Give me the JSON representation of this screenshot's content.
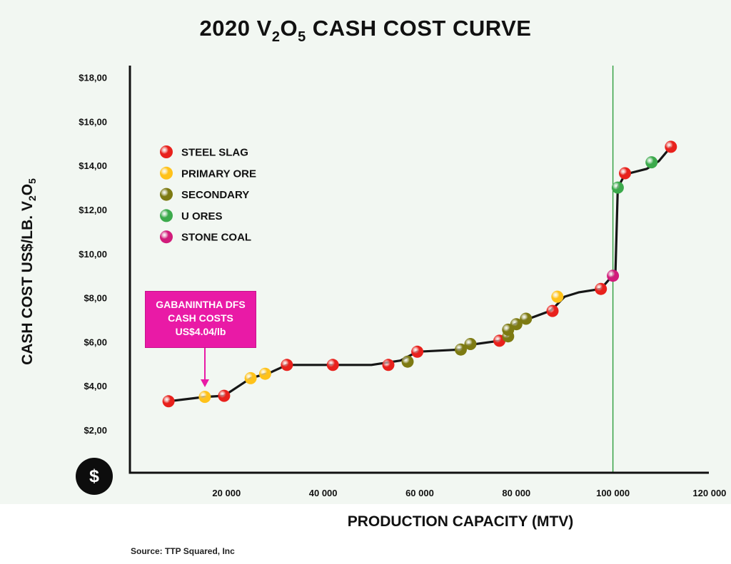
{
  "title": {
    "main": "2020 V",
    "sub1": "2",
    "mid": "O",
    "sub2": "5",
    "end": " CASH COST CURVE"
  },
  "ylabel": {
    "main": "CASH COST US$/LB. V",
    "sub1": "2",
    "mid": "O",
    "sub2": "5"
  },
  "xlabel": "PRODUCTION CAPACITY (MTV)",
  "source": "Source: TTP Squared, Inc",
  "dollar_symbol": "$",
  "callout": {
    "line1": "GABANINTHA DFS",
    "line2": "CASH COSTS",
    "line3": "US$4.04/lb",
    "color": "#e91aa6"
  },
  "chart_data": {
    "type": "line",
    "xlim": [
      0,
      120000
    ],
    "ylim": [
      0,
      18
    ],
    "reference_line_x": 100000,
    "reference_line_color": "#2e9e3e",
    "y_ticks": [
      {
        "v": 2,
        "label": "$2,00"
      },
      {
        "v": 4,
        "label": "$4,00"
      },
      {
        "v": 6,
        "label": "$6,00"
      },
      {
        "v": 8,
        "label": "$8,00"
      },
      {
        "v": 10,
        "label": "$10,00"
      },
      {
        "v": 12,
        "label": "$12,00"
      },
      {
        "v": 14,
        "label": "$14,00"
      },
      {
        "v": 16,
        "label": "$16,00"
      },
      {
        "v": 18,
        "label": "$18,00"
      }
    ],
    "x_ticks": [
      {
        "v": 20000,
        "label": "20 000"
      },
      {
        "v": 40000,
        "label": "40 000"
      },
      {
        "v": 60000,
        "label": "60 000"
      },
      {
        "v": 80000,
        "label": "80 000"
      },
      {
        "v": 100000,
        "label": "100 000"
      },
      {
        "v": 120000,
        "label": "120 000"
      }
    ],
    "categories": [
      {
        "key": "steel",
        "name": "STEEL SLAG",
        "color": "#e8211c"
      },
      {
        "key": "primary",
        "name": "PRIMARY ORE",
        "color": "#ffc21a"
      },
      {
        "key": "secondary",
        "name": "SECONDARY",
        "color": "#7d7a12"
      },
      {
        "key": "u",
        "name": "U ORES",
        "color": "#3caa4c"
      },
      {
        "key": "stone",
        "name": "STONE COAL",
        "color": "#d11c7b"
      }
    ],
    "line_points": [
      [
        8000,
        3.3
      ],
      [
        15500,
        3.5
      ],
      [
        19500,
        3.55
      ],
      [
        25000,
        4.35
      ],
      [
        29000,
        4.6
      ],
      [
        32500,
        4.95
      ],
      [
        40000,
        4.95
      ],
      [
        50000,
        4.95
      ],
      [
        56000,
        5.15
      ],
      [
        59500,
        5.55
      ],
      [
        68500,
        5.65
      ],
      [
        70000,
        5.85
      ],
      [
        76500,
        6.05
      ],
      [
        78000,
        6.2
      ],
      [
        78300,
        6.5
      ],
      [
        79700,
        6.8
      ],
      [
        82000,
        7.0
      ],
      [
        87000,
        7.4
      ],
      [
        88000,
        7.6
      ],
      [
        90000,
        8.05
      ],
      [
        93000,
        8.25
      ],
      [
        97500,
        8.4
      ],
      [
        99500,
        8.9
      ],
      [
        100500,
        9.0
      ],
      [
        101000,
        13.0
      ],
      [
        102500,
        13.6
      ],
      [
        107000,
        13.85
      ],
      [
        109500,
        14.2
      ],
      [
        112000,
        14.85
      ]
    ],
    "points": [
      {
        "x": 8000,
        "y": 3.3,
        "cat": "steel"
      },
      {
        "x": 15500,
        "y": 3.5,
        "cat": "primary"
      },
      {
        "x": 19500,
        "y": 3.55,
        "cat": "steel"
      },
      {
        "x": 25000,
        "y": 4.35,
        "cat": "primary"
      },
      {
        "x": 28000,
        "y": 4.55,
        "cat": "primary"
      },
      {
        "x": 32500,
        "y": 4.95,
        "cat": "steel"
      },
      {
        "x": 42000,
        "y": 4.95,
        "cat": "steel"
      },
      {
        "x": 53500,
        "y": 4.95,
        "cat": "steel"
      },
      {
        "x": 57500,
        "y": 5.1,
        "cat": "secondary"
      },
      {
        "x": 59500,
        "y": 5.55,
        "cat": "steel"
      },
      {
        "x": 68500,
        "y": 5.65,
        "cat": "secondary"
      },
      {
        "x": 70500,
        "y": 5.9,
        "cat": "secondary"
      },
      {
        "x": 76500,
        "y": 6.05,
        "cat": "steel"
      },
      {
        "x": 78300,
        "y": 6.25,
        "cat": "secondary"
      },
      {
        "x": 78300,
        "y": 6.55,
        "cat": "secondary"
      },
      {
        "x": 80000,
        "y": 6.8,
        "cat": "secondary"
      },
      {
        "x": 82000,
        "y": 7.05,
        "cat": "secondary"
      },
      {
        "x": 87500,
        "y": 7.4,
        "cat": "steel"
      },
      {
        "x": 88500,
        "y": 8.05,
        "cat": "primary"
      },
      {
        "x": 97500,
        "y": 8.4,
        "cat": "steel"
      },
      {
        "x": 100000,
        "y": 9.0,
        "cat": "stone"
      },
      {
        "x": 101000,
        "y": 13.0,
        "cat": "u"
      },
      {
        "x": 102500,
        "y": 13.65,
        "cat": "steel"
      },
      {
        "x": 108000,
        "y": 14.15,
        "cat": "u"
      },
      {
        "x": 112000,
        "y": 14.85,
        "cat": "steel"
      }
    ]
  }
}
